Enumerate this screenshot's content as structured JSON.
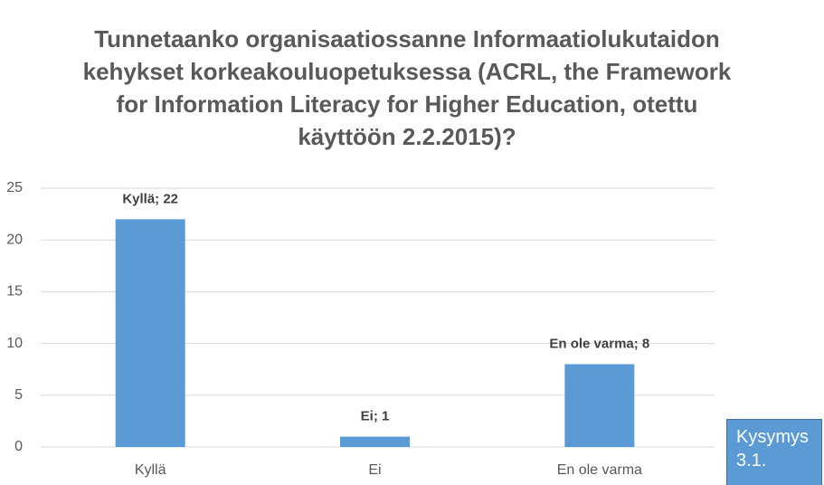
{
  "chart_data": {
    "type": "bar",
    "title": [
      "Tunnetaanko organisaatiossanne Informaatiolukutaidon",
      "kehykset korkeakouluopetuksessa (ACRL, the Framework",
      "for Information Literacy for Higher Education, otettu",
      "käyttöön 2.2.2015)?"
    ],
    "categories": [
      "Kyllä",
      "Ei",
      "En ole varma"
    ],
    "values": [
      22,
      1,
      8
    ],
    "value_labels": [
      "Kyllä; 22",
      "Ei; 1",
      "En ole varma; 8"
    ],
    "color": "#5b9bd5",
    "ylim": [
      0,
      25
    ],
    "yticks": [
      0,
      5,
      10,
      15,
      20,
      25
    ],
    "grid": true,
    "annotation": "Kysymys 3.1."
  }
}
